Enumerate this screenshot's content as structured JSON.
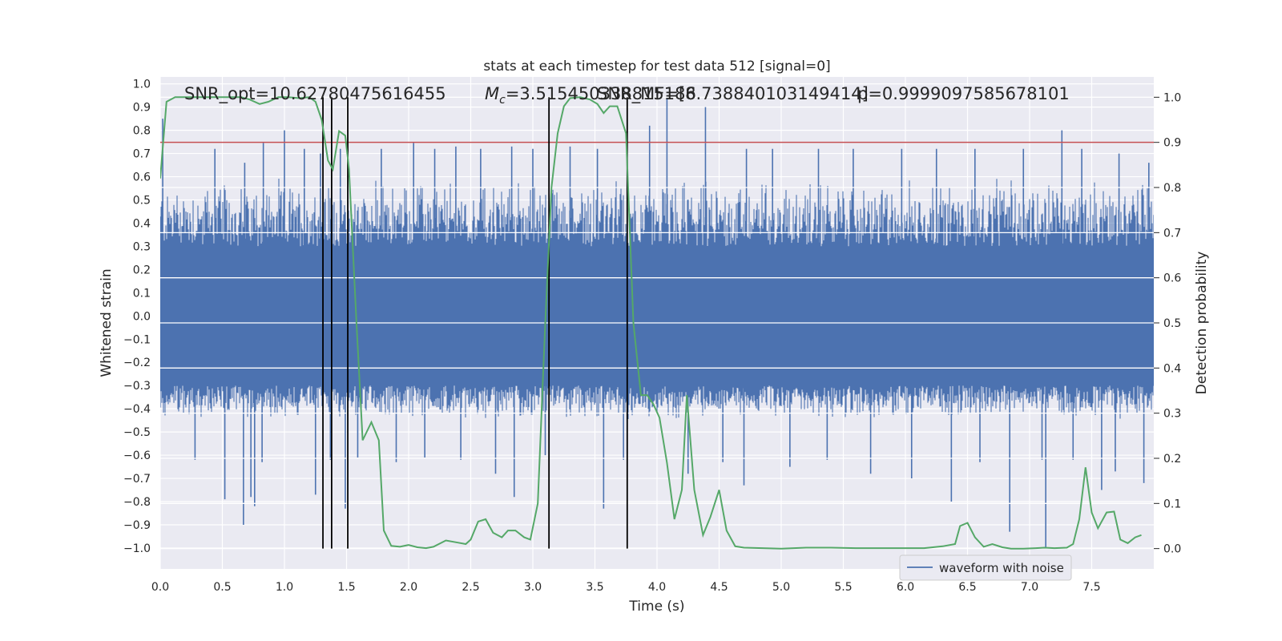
{
  "chart_data": {
    "type": "line",
    "title": "stats at each timestep for test data 512 [signal=0]",
    "xlabel": "Time (s)",
    "ylabel": "Whitened strain",
    "y2label": "Detection probability",
    "xlim": [
      0.0,
      8.0
    ],
    "ylim": [
      -1.09,
      1.03
    ],
    "y2lim": [
      -0.045,
      1.045
    ],
    "xticks": [
      "0.0",
      "0.5",
      "1.0",
      "1.5",
      "2.0",
      "2.5",
      "3.0",
      "3.5",
      "4.0",
      "4.5",
      "5.0",
      "5.5",
      "6.0",
      "6.5",
      "7.0",
      "7.5"
    ],
    "yticks": [
      "1.0",
      "0.9",
      "0.8",
      "0.7",
      "0.6",
      "0.5",
      "0.4",
      "0.3",
      "0.2",
      "0.1",
      "0.0",
      "-0.1",
      "-0.2",
      "-0.3",
      "-0.4",
      "-0.5",
      "-0.6",
      "-0.7",
      "-0.8",
      "-0.9",
      "-1.0"
    ],
    "y2ticks": [
      "1.0",
      "0.9",
      "0.8",
      "0.7",
      "0.6",
      "0.5",
      "0.4",
      "0.3",
      "0.2",
      "0.1",
      "0.0"
    ],
    "grid": true,
    "legend": {
      "position": "lower-right",
      "entries": [
        {
          "label": "waveform with noise",
          "color": "#4c72b0"
        }
      ]
    },
    "annotations": [
      "SNR_opt=10.62780475616455",
      "$M_c$=3.515450338815186",
      "SNR_MF=[8.738840103149414]",
      "p=0.9999097585678101"
    ],
    "colors": {
      "strain": "#4c72b0",
      "probability": "#55a868",
      "threshold": "#c44e52",
      "event_lines": "#000000",
      "background": "#eaeaf2"
    },
    "threshold": 0.9,
    "event_lines_x": [
      1.31,
      1.38,
      1.51,
      3.13,
      3.76
    ],
    "series": [
      {
        "name": "waveform with noise",
        "noise_band_y": [
          -0.45,
          0.6
        ],
        "peak_spikes": [
          [
            0.02,
            0.85
          ],
          [
            0.44,
            0.72
          ],
          [
            0.68,
            0.66
          ],
          [
            0.83,
            0.75
          ],
          [
            1.0,
            0.8
          ],
          [
            1.16,
            0.72
          ],
          [
            1.29,
            0.7
          ],
          [
            1.45,
            0.72
          ],
          [
            1.78,
            0.72
          ],
          [
            2.04,
            0.75
          ],
          [
            2.21,
            0.72
          ],
          [
            2.38,
            0.73
          ],
          [
            2.58,
            0.72
          ],
          [
            2.83,
            0.73
          ],
          [
            3.0,
            0.72
          ],
          [
            3.3,
            0.73
          ],
          [
            3.52,
            0.72
          ],
          [
            3.94,
            0.82
          ],
          [
            4.08,
            0.94
          ],
          [
            4.39,
            0.9
          ],
          [
            4.72,
            0.72
          ],
          [
            4.93,
            0.72
          ],
          [
            5.3,
            0.72
          ],
          [
            5.58,
            0.72
          ],
          [
            5.97,
            0.72
          ],
          [
            6.25,
            0.72
          ],
          [
            6.56,
            0.72
          ],
          [
            6.95,
            0.72
          ],
          [
            7.26,
            0.8
          ],
          [
            7.42,
            0.72
          ],
          [
            7.72,
            0.7
          ],
          [
            7.96,
            0.66
          ]
        ],
        "trough_spikes": [
          [
            0.28,
            -0.62
          ],
          [
            0.52,
            -0.79
          ],
          [
            0.67,
            -0.9
          ],
          [
            0.73,
            -0.78
          ],
          [
            0.76,
            -0.82
          ],
          [
            0.82,
            -0.63
          ],
          [
            1.25,
            -0.77
          ],
          [
            1.37,
            -0.62
          ],
          [
            1.49,
            -0.83
          ],
          [
            1.59,
            -0.61
          ],
          [
            1.9,
            -0.63
          ],
          [
            2.13,
            -0.61
          ],
          [
            2.42,
            -0.62
          ],
          [
            2.7,
            -0.68
          ],
          [
            2.85,
            -0.78
          ],
          [
            3.1,
            -0.6
          ],
          [
            3.57,
            -0.83
          ],
          [
            3.73,
            -0.62
          ],
          [
            4.25,
            -0.68
          ],
          [
            4.53,
            -0.63
          ],
          [
            4.7,
            -0.73
          ],
          [
            5.07,
            -0.65
          ],
          [
            5.37,
            -0.62
          ],
          [
            5.72,
            -0.68
          ],
          [
            6.05,
            -0.7
          ],
          [
            6.37,
            -0.8
          ],
          [
            6.6,
            -0.63
          ],
          [
            6.84,
            -0.93
          ],
          [
            7.1,
            -0.62
          ],
          [
            7.13,
            -1.0
          ],
          [
            7.35,
            -0.62
          ],
          [
            7.58,
            -0.75
          ],
          [
            7.69,
            -0.67
          ],
          [
            7.92,
            -0.72
          ]
        ]
      },
      {
        "name": "",
        "axis": "right",
        "points": [
          [
            0.0,
            0.82
          ],
          [
            0.05,
            0.99
          ],
          [
            0.12,
            1.0
          ],
          [
            0.2,
            1.0
          ],
          [
            0.3,
            1.0
          ],
          [
            0.42,
            1.0
          ],
          [
            0.55,
            1.0
          ],
          [
            0.65,
            1.0
          ],
          [
            0.72,
            0.995
          ],
          [
            0.8,
            0.985
          ],
          [
            0.87,
            0.99
          ],
          [
            0.95,
            1.0
          ],
          [
            1.03,
            1.0
          ],
          [
            1.12,
            0.998
          ],
          [
            1.2,
            1.0
          ],
          [
            1.25,
            0.99
          ],
          [
            1.3,
            0.95
          ],
          [
            1.35,
            0.86
          ],
          [
            1.39,
            0.84
          ],
          [
            1.44,
            0.925
          ],
          [
            1.49,
            0.915
          ],
          [
            1.52,
            0.84
          ],
          [
            1.58,
            0.5
          ],
          [
            1.63,
            0.24
          ],
          [
            1.7,
            0.28
          ],
          [
            1.76,
            0.24
          ],
          [
            1.8,
            0.04
          ],
          [
            1.86,
            0.006
          ],
          [
            1.93,
            0.004
          ],
          [
            2.0,
            0.008
          ],
          [
            2.07,
            0.003
          ],
          [
            2.14,
            0.001
          ],
          [
            2.2,
            0.004
          ],
          [
            2.3,
            0.018
          ],
          [
            2.4,
            0.013
          ],
          [
            2.46,
            0.01
          ],
          [
            2.5,
            0.02
          ],
          [
            2.56,
            0.06
          ],
          [
            2.62,
            0.065
          ],
          [
            2.68,
            0.035
          ],
          [
            2.75,
            0.025
          ],
          [
            2.8,
            0.04
          ],
          [
            2.86,
            0.04
          ],
          [
            2.93,
            0.025
          ],
          [
            2.98,
            0.02
          ],
          [
            3.04,
            0.1
          ],
          [
            3.1,
            0.5
          ],
          [
            3.15,
            0.8
          ],
          [
            3.2,
            0.92
          ],
          [
            3.25,
            0.98
          ],
          [
            3.3,
            0.998
          ],
          [
            3.38,
            1.0
          ],
          [
            3.46,
            0.995
          ],
          [
            3.52,
            0.985
          ],
          [
            3.57,
            0.965
          ],
          [
            3.62,
            0.98
          ],
          [
            3.68,
            0.98
          ],
          [
            3.75,
            0.92
          ],
          [
            3.81,
            0.5
          ],
          [
            3.87,
            0.34
          ],
          [
            3.92,
            0.34
          ],
          [
            3.97,
            0.32
          ],
          [
            4.02,
            0.29
          ],
          [
            4.08,
            0.19
          ],
          [
            4.14,
            0.065
          ],
          [
            4.2,
            0.13
          ],
          [
            4.24,
            0.34
          ],
          [
            4.3,
            0.13
          ],
          [
            4.37,
            0.03
          ],
          [
            4.43,
            0.07
          ],
          [
            4.5,
            0.13
          ],
          [
            4.56,
            0.04
          ],
          [
            4.63,
            0.005
          ],
          [
            4.7,
            0.002
          ],
          [
            4.85,
            0.001
          ],
          [
            5.0,
            0.0
          ],
          [
            5.2,
            0.002
          ],
          [
            5.4,
            0.002
          ],
          [
            5.6,
            0.001
          ],
          [
            5.8,
            0.001
          ],
          [
            6.0,
            0.001
          ],
          [
            6.15,
            0.001
          ],
          [
            6.3,
            0.005
          ],
          [
            6.4,
            0.01
          ],
          [
            6.44,
            0.05
          ],
          [
            6.5,
            0.057
          ],
          [
            6.56,
            0.025
          ],
          [
            6.63,
            0.004
          ],
          [
            6.7,
            0.01
          ],
          [
            6.78,
            0.003
          ],
          [
            6.85,
            0.0
          ],
          [
            6.95,
            0.0
          ],
          [
            7.05,
            0.001
          ],
          [
            7.12,
            0.002
          ],
          [
            7.2,
            0.001
          ],
          [
            7.3,
            0.002
          ],
          [
            7.35,
            0.01
          ],
          [
            7.4,
            0.065
          ],
          [
            7.45,
            0.18
          ],
          [
            7.5,
            0.08
          ],
          [
            7.55,
            0.045
          ],
          [
            7.62,
            0.08
          ],
          [
            7.68,
            0.082
          ],
          [
            7.73,
            0.02
          ],
          [
            7.79,
            0.012
          ],
          [
            7.85,
            0.025
          ],
          [
            7.9,
            0.03
          ]
        ]
      }
    ]
  }
}
